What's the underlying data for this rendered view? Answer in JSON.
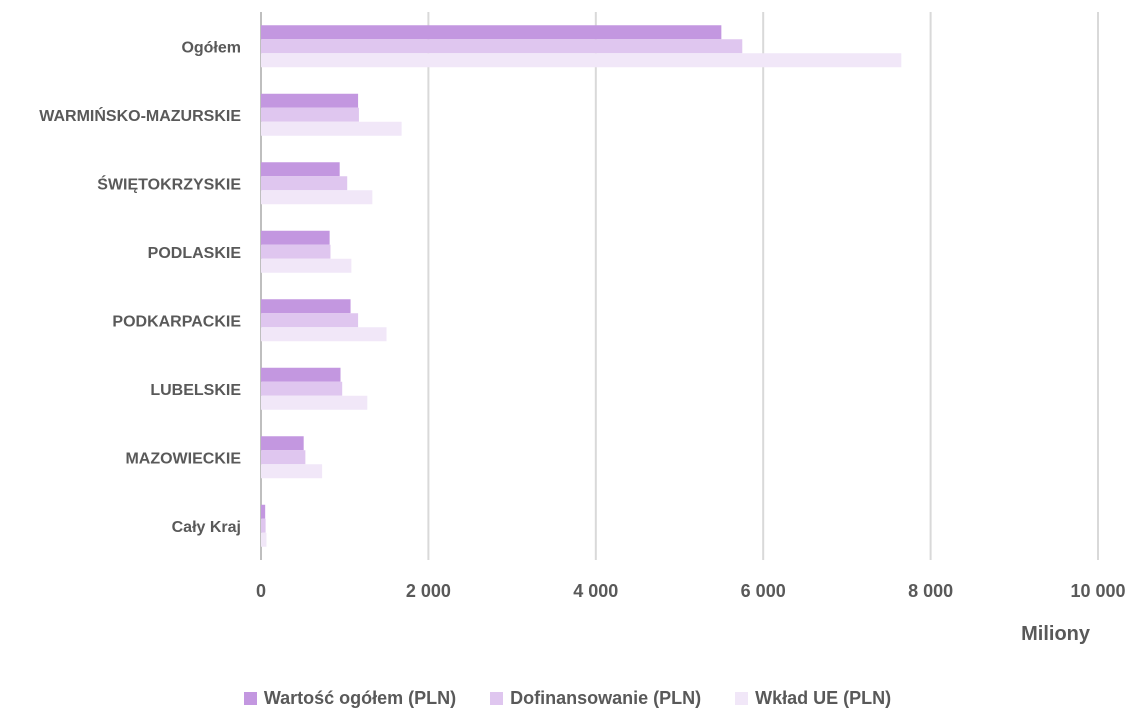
{
  "chart_data": {
    "type": "bar",
    "orientation": "horizontal",
    "categories": [
      "Ogółem",
      "WARMIŃSKO-MAZURSKIE",
      "ŚWIĘTOKRZYSKIE",
      "PODLASKIE",
      "PODKARPACKIE",
      "LUBELSKIE",
      "MAZOWIECKIE",
      "Cały Kraj"
    ],
    "series": [
      {
        "name": "Wartość ogółem (PLN)",
        "color": "#c397e0",
        "values": [
          5500,
          1160,
          940,
          820,
          1070,
          950,
          510,
          50
        ]
      },
      {
        "name": "Dofinansowanie (PLN)",
        "color": "#dfc6ef",
        "values": [
          5750,
          1170,
          1030,
          830,
          1160,
          970,
          530,
          55
        ]
      },
      {
        "name": "Wkład UE (PLN)",
        "color": "#f1e7f8",
        "values": [
          7650,
          1680,
          1330,
          1080,
          1500,
          1270,
          730,
          65
        ]
      }
    ],
    "x_ticks": [
      "0",
      "2 000",
      "4 000",
      "6 000",
      "8 000",
      "10 000"
    ],
    "xlim": [
      0,
      10000
    ],
    "x_unit_label": "Miliony",
    "grid": true,
    "legend_position": "bottom"
  }
}
